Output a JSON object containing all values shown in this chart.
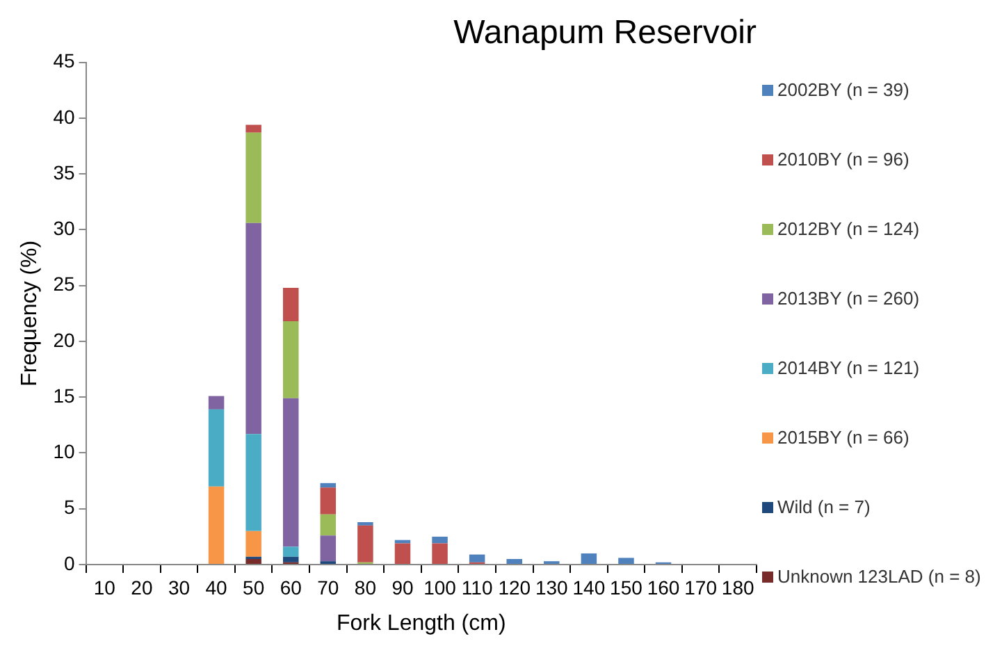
{
  "chart_data": {
    "type": "bar",
    "title": "Wanapum Reservoir",
    "xlabel": "Fork Length (cm)",
    "ylabel": "Frequency (%)",
    "categories": [
      "10",
      "20",
      "30",
      "40",
      "50",
      "60",
      "70",
      "80",
      "90",
      "100",
      "110",
      "120",
      "130",
      "140",
      "150",
      "160",
      "170",
      "180"
    ],
    "stacked": true,
    "ylim": [
      0,
      45
    ],
    "yticks": [
      0,
      5,
      10,
      15,
      20,
      25,
      30,
      35,
      40,
      45
    ],
    "grid": false,
    "legend": "right",
    "series": [
      {
        "name": "Unknown 123LAD (n = 8)",
        "color": "#772c2a",
        "values": [
          0,
          0,
          0,
          0,
          0.5,
          0.2,
          0,
          0,
          0,
          0,
          0,
          0,
          0,
          0,
          0,
          0,
          0,
          0
        ]
      },
      {
        "name": "Wild (n = 7)",
        "color": "#1f497d",
        "values": [
          0,
          0,
          0,
          0,
          0.2,
          0.5,
          0.3,
          0,
          0,
          0,
          0,
          0,
          0,
          0,
          0,
          0,
          0,
          0
        ]
      },
      {
        "name": "2015BY (n = 66)",
        "color": "#f79646",
        "values": [
          0,
          0,
          0,
          7,
          2.3,
          0,
          0,
          0,
          0,
          0,
          0,
          0,
          0,
          0,
          0,
          0,
          0,
          0
        ]
      },
      {
        "name": "2014BY (n = 121)",
        "color": "#4bacc6",
        "values": [
          0,
          0,
          0,
          6.9,
          8.7,
          0.9,
          0,
          0,
          0,
          0,
          0,
          0,
          0,
          0,
          0,
          0,
          0,
          0
        ]
      },
      {
        "name": "2013BY (n = 260)",
        "color": "#8064a2",
        "values": [
          0,
          0,
          0,
          1.2,
          18.9,
          13.3,
          2.3,
          0,
          0,
          0,
          0,
          0,
          0,
          0,
          0,
          0,
          0,
          0
        ]
      },
      {
        "name": "2012BY (n = 124)",
        "color": "#9bbb59",
        "values": [
          0,
          0,
          0,
          0,
          8.1,
          6.9,
          1.9,
          0.2,
          0,
          0,
          0,
          0,
          0,
          0,
          0,
          0,
          0,
          0
        ]
      },
      {
        "name": "2010BY (n = 96)",
        "color": "#c0504d",
        "values": [
          0,
          0,
          0,
          0,
          0.7,
          3,
          2.4,
          3.3,
          1.9,
          1.9,
          0.2,
          0,
          0,
          0,
          0,
          0,
          0,
          0
        ]
      },
      {
        "name": "2002BY (n = 39)",
        "color": "#4f81bd",
        "values": [
          0,
          0,
          0,
          0,
          0,
          0,
          0.4,
          0.3,
          0.3,
          0.6,
          0.7,
          0.5,
          0.3,
          1,
          0.6,
          0.2,
          0,
          0
        ]
      }
    ]
  }
}
